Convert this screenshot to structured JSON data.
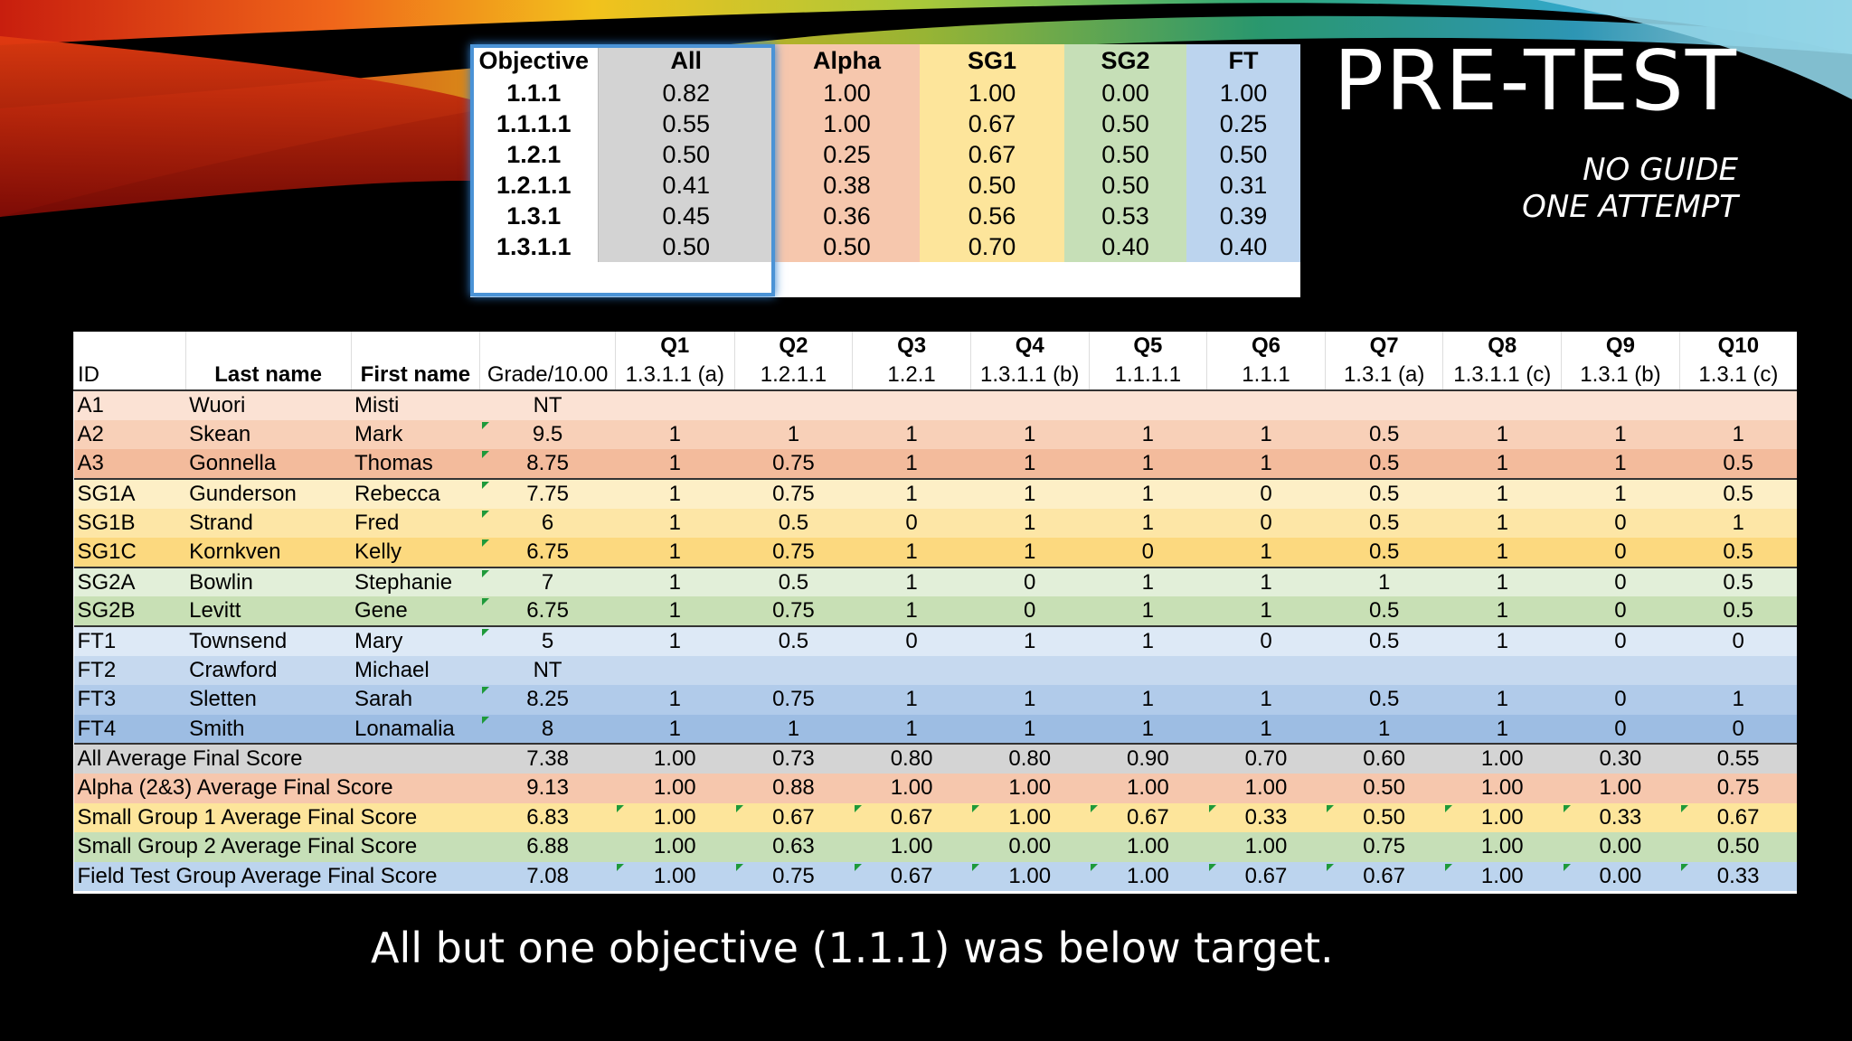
{
  "title": "PRE-TEST",
  "subtitle_lines": [
    "NO GUIDE",
    "ONE ATTEMPT"
  ],
  "footer": "All but one objective (1.1.1) was below target.",
  "colors": {
    "all": "#d3d3d3",
    "alpha": "#f6c7ad",
    "sg1": "#fde59b",
    "sg2": "#c6dfb7",
    "ft": "#bcd4ee",
    "highlight": "#4b93d6"
  },
  "objective_table": {
    "headers": [
      "Objective",
      "All",
      "Alpha",
      "SG1",
      "SG2",
      "FT"
    ],
    "rows": [
      [
        "1.1.1",
        "0.82",
        "1.00",
        "1.00",
        "0.00",
        "1.00"
      ],
      [
        "1.1.1.1",
        "0.55",
        "1.00",
        "0.67",
        "0.50",
        "0.25"
      ],
      [
        "1.2.1",
        "0.50",
        "0.25",
        "0.67",
        "0.50",
        "0.50"
      ],
      [
        "1.2.1.1",
        "0.41",
        "0.38",
        "0.50",
        "0.50",
        "0.31"
      ],
      [
        "1.3.1",
        "0.45",
        "0.36",
        "0.56",
        "0.53",
        "0.39"
      ],
      [
        "1.3.1.1",
        "0.50",
        "0.50",
        "0.70",
        "0.40",
        "0.40"
      ]
    ]
  },
  "grade_table": {
    "question_row": [
      "",
      "",
      "",
      "",
      "Q1",
      "Q2",
      "Q3",
      "Q4",
      "Q5",
      "Q6",
      "Q7",
      "Q8",
      "Q9",
      "Q10"
    ],
    "header_row": [
      "ID",
      "Last name",
      "First name",
      "Grade/10.00",
      "1.3.1.1 (a)",
      "1.2.1.1",
      "1.2.1",
      "1.3.1.1 (b)",
      "1.1.1.1",
      "1.1.1",
      "1.3.1 (a)",
      "1.3.1.1 (c)",
      "1.3.1 (b)",
      "1.3.1 (c)"
    ],
    "students": [
      {
        "id": "A1",
        "last": "Wuori",
        "first": "Misti",
        "grade": "NT",
        "scores": [
          "",
          "",
          "",
          "",
          "",
          "",
          "",
          "",
          "",
          ""
        ]
      },
      {
        "id": "A2",
        "last": "Skean",
        "first": "Mark",
        "grade": "9.5",
        "scores": [
          "1",
          "1",
          "1",
          "1",
          "1",
          "1",
          "0.5",
          "1",
          "1",
          "1"
        ]
      },
      {
        "id": "A3",
        "last": "Gonnella",
        "first": "Thomas",
        "grade": "8.75",
        "scores": [
          "1",
          "0.75",
          "1",
          "1",
          "1",
          "1",
          "0.5",
          "1",
          "1",
          "0.5"
        ]
      },
      {
        "id": "SG1A",
        "last": "Gunderson",
        "first": "Rebecca",
        "grade": "7.75",
        "scores": [
          "1",
          "0.75",
          "1",
          "1",
          "1",
          "0",
          "0.5",
          "1",
          "1",
          "0.5"
        ]
      },
      {
        "id": "SG1B",
        "last": "Strand",
        "first": "Fred",
        "grade": "6",
        "scores": [
          "1",
          "0.5",
          "0",
          "1",
          "1",
          "0",
          "0.5",
          "1",
          "0",
          "1"
        ]
      },
      {
        "id": "SG1C",
        "last": "Kornkven",
        "first": "Kelly",
        "grade": "6.75",
        "scores": [
          "1",
          "0.75",
          "1",
          "1",
          "0",
          "1",
          "0.5",
          "1",
          "0",
          "0.5"
        ]
      },
      {
        "id": "SG2A",
        "last": "Bowlin",
        "first": "Stephanie",
        "grade": "7",
        "scores": [
          "1",
          "0.5",
          "1",
          "0",
          "1",
          "1",
          "1",
          "1",
          "0",
          "0.5"
        ]
      },
      {
        "id": "SG2B",
        "last": "Levitt",
        "first": "Gene",
        "grade": "6.75",
        "scores": [
          "1",
          "0.75",
          "1",
          "0",
          "1",
          "1",
          "0.5",
          "1",
          "0",
          "0.5"
        ]
      },
      {
        "id": "FT1",
        "last": "Townsend",
        "first": "Mary",
        "grade": "5",
        "scores": [
          "1",
          "0.5",
          "0",
          "1",
          "1",
          "0",
          "0.5",
          "1",
          "0",
          "0"
        ]
      },
      {
        "id": "FT2",
        "last": "Crawford",
        "first": "Michael",
        "grade": "NT",
        "scores": [
          "",
          "",
          "",
          "",
          "",
          "",
          "",
          "",
          "",
          ""
        ]
      },
      {
        "id": "FT3",
        "last": "Sletten",
        "first": "Sarah",
        "grade": "8.25",
        "scores": [
          "1",
          "0.75",
          "1",
          "1",
          "1",
          "1",
          "0.5",
          "1",
          "0",
          "1"
        ]
      },
      {
        "id": "FT4",
        "last": "Smith",
        "first": "Lonamalia",
        "grade": "8",
        "scores": [
          "1",
          "1",
          "1",
          "1",
          "1",
          "1",
          "1",
          "1",
          "0",
          "0"
        ]
      }
    ],
    "averages": [
      {
        "label": "All Average Final Score",
        "grade": "7.38",
        "scores": [
          "1.00",
          "0.73",
          "0.80",
          "0.80",
          "0.90",
          "0.70",
          "0.60",
          "1.00",
          "0.30",
          "0.55"
        ]
      },
      {
        "label": "Alpha (2&3) Average Final Score",
        "grade": "9.13",
        "scores": [
          "1.00",
          "0.88",
          "1.00",
          "1.00",
          "1.00",
          "1.00",
          "0.50",
          "1.00",
          "1.00",
          "0.75"
        ]
      },
      {
        "label": "Small Group 1 Average Final Score",
        "grade": "6.83",
        "scores": [
          "1.00",
          "0.67",
          "0.67",
          "1.00",
          "0.67",
          "0.33",
          "0.50",
          "1.00",
          "0.33",
          "0.67"
        ]
      },
      {
        "label": "Small Group 2 Average Final Score",
        "grade": "6.88",
        "scores": [
          "1.00",
          "0.63",
          "1.00",
          "0.00",
          "1.00",
          "1.00",
          "0.75",
          "1.00",
          "0.00",
          "0.50"
        ]
      },
      {
        "label": "Field Test Group Average Final Score",
        "grade": "7.08",
        "scores": [
          "1.00",
          "0.75",
          "0.67",
          "1.00",
          "1.00",
          "0.67",
          "0.67",
          "1.00",
          "0.00",
          "0.33"
        ]
      }
    ]
  }
}
